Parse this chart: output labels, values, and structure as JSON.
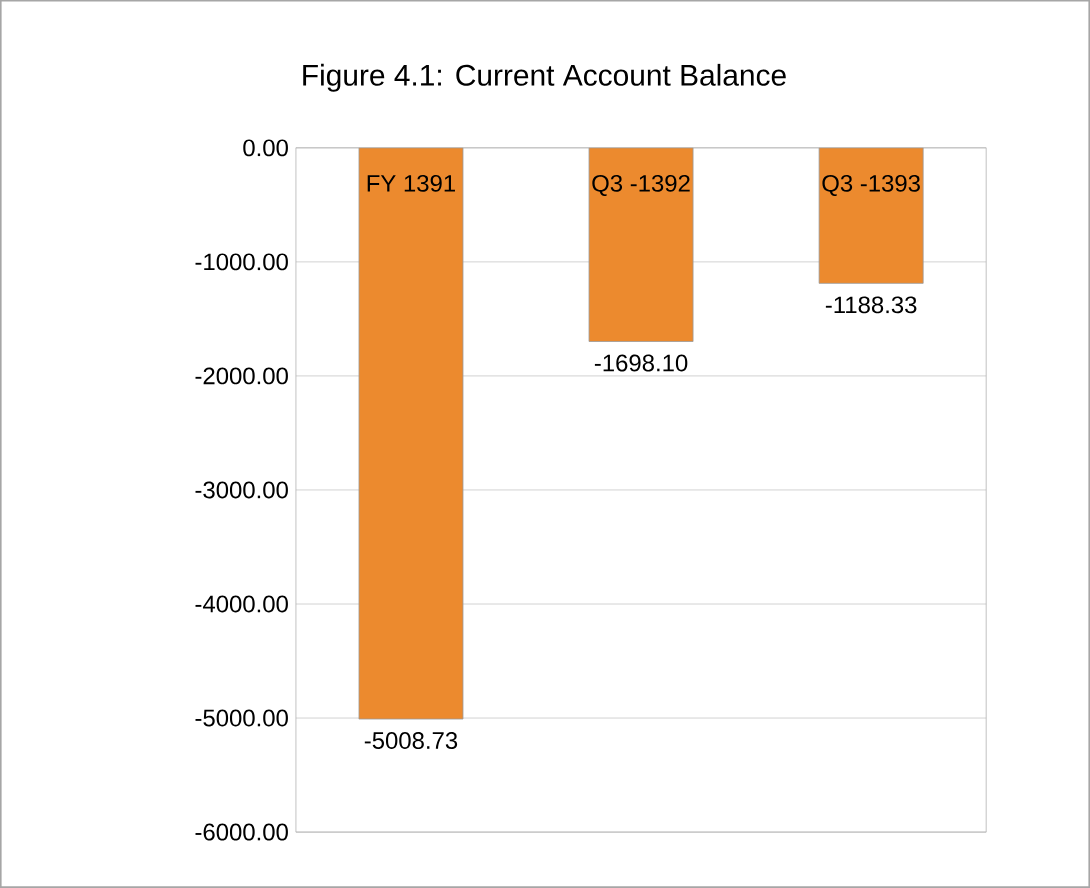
{
  "chart_data": {
    "type": "bar",
    "title": "Figure 4.1: Current Account Balance",
    "categories": [
      "FY 1391",
      "Q3 -1392",
      "Q3 -1393"
    ],
    "values": [
      -5008.73,
      -1698.1,
      -1188.33
    ],
    "value_labels": [
      "-5008.73",
      "-1698.10",
      "-1188.33"
    ],
    "color": "#ec8a2e",
    "ylim": [
      -6000,
      0
    ],
    "yticks": [
      {
        "value": 0,
        "label": "0.00"
      },
      {
        "value": -1000,
        "label": "-1000.00"
      },
      {
        "value": -2000,
        "label": "-2000.00"
      },
      {
        "value": -3000,
        "label": "-3000.00"
      },
      {
        "value": -4000,
        "label": "-4000.00"
      },
      {
        "value": -5000,
        "label": "-5000.00"
      },
      {
        "value": -6000,
        "label": "-6000.00"
      }
    ],
    "grid": "y"
  }
}
